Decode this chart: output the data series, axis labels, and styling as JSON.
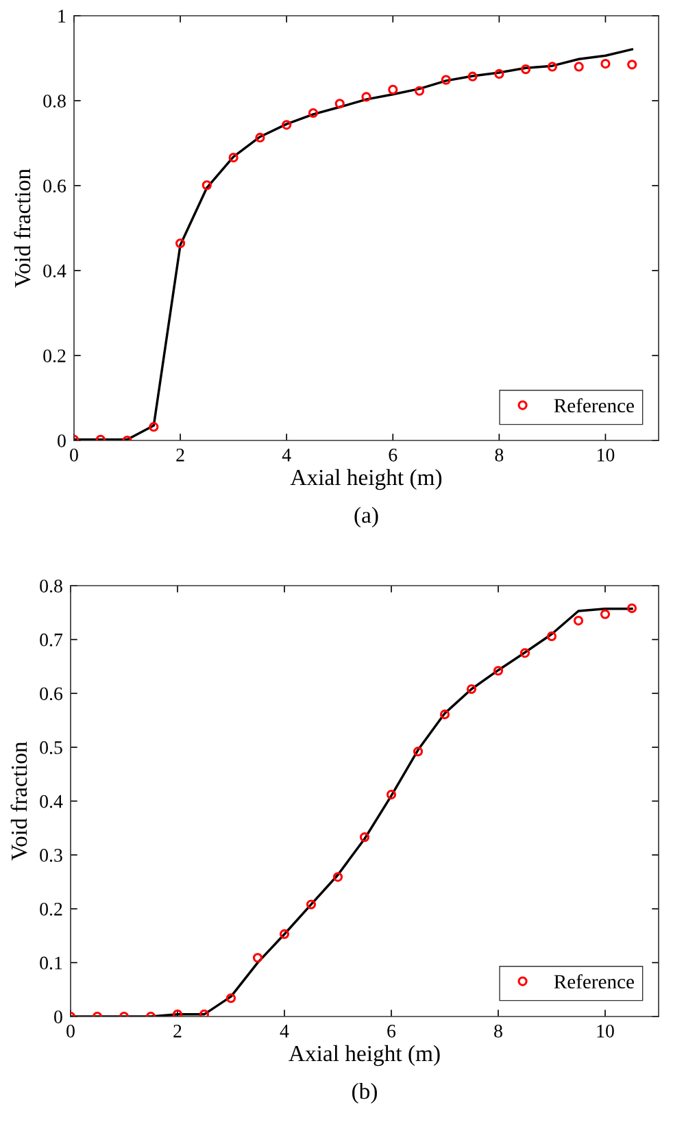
{
  "chart_data": [
    {
      "type": "line",
      "xlabel": "Axial height (m)",
      "ylabel": "Void fraction",
      "annotations": [
        "(a)"
      ],
      "xlim": [
        0,
        11
      ],
      "xticks": [
        0,
        2,
        4,
        6,
        8,
        10
      ],
      "ylim": [
        0,
        1
      ],
      "yticks": [
        0,
        0.2,
        0.4,
        0.6,
        0.8,
        1
      ],
      "grid": false,
      "legend": "bottom right",
      "series": [
        {
          "name": "Reference",
          "type": "scatter",
          "marker": "circle",
          "color": "#ff0000",
          "x": [
            0,
            0.5,
            1,
            1.5,
            2,
            2.5,
            3,
            3.5,
            4,
            4.5,
            5,
            5.5,
            6,
            6.5,
            7,
            7.5,
            8,
            8.5,
            9,
            9.5,
            10,
            10.5
          ],
          "values": [
            0.002,
            0.002,
            0,
            0.032,
            0.464,
            0.601,
            0.666,
            0.713,
            0.743,
            0.771,
            0.793,
            0.809,
            0.826,
            0.823,
            0.849,
            0.857,
            0.863,
            0.874,
            0.88,
            0.88,
            0.887,
            0.885
          ]
        },
        {
          "color": "#000000",
          "line_style": "solid",
          "x": [
            0,
            0.5,
            1,
            1.5,
            2,
            2.5,
            3,
            3.5,
            4,
            4.5,
            5,
            5.5,
            6,
            6.5,
            7,
            7.5,
            8,
            8.5,
            9,
            9.5,
            10,
            10.5
          ],
          "values": [
            0.002,
            0.002,
            0.002,
            0.035,
            0.46,
            0.595,
            0.668,
            0.715,
            0.745,
            0.768,
            0.785,
            0.803,
            0.815,
            0.828,
            0.847,
            0.858,
            0.866,
            0.877,
            0.882,
            0.898,
            0.906,
            0.921
          ]
        }
      ]
    },
    {
      "type": "line",
      "xlabel": "Axial height (m)",
      "ylabel": "Void fraction",
      "annotations": [
        "(b)"
      ],
      "xlim": [
        0,
        11
      ],
      "xticks": [
        0,
        2,
        4,
        6,
        8,
        10
      ],
      "ylim": [
        0,
        0.8
      ],
      "yticks": [
        0,
        0.1,
        0.2,
        0.3,
        0.4,
        0.5,
        0.6,
        0.7,
        0.8
      ],
      "grid": false,
      "legend": "bottom right",
      "series": [
        {
          "name": "Reference",
          "type": "scatter",
          "marker": "circle",
          "color": "#ff0000",
          "x": [
            0,
            0.5,
            1,
            1.5,
            2,
            2.5,
            3,
            3.5,
            4,
            4.5,
            5,
            5.5,
            6,
            6.5,
            7,
            7.5,
            8,
            8.5,
            9,
            9.5,
            10,
            10.5
          ],
          "values": [
            0,
            0,
            0,
            0,
            0.004,
            0.004,
            0.034,
            0.109,
            0.153,
            0.208,
            0.259,
            0.333,
            0.412,
            0.492,
            0.561,
            0.608,
            0.642,
            0.675,
            0.706,
            0.735,
            0.747,
            0.758
          ]
        },
        {
          "color": "#000000",
          "line_style": "solid",
          "x": [
            0,
            0.5,
            1,
            1.5,
            2,
            2.5,
            3,
            3.5,
            4,
            4.5,
            5,
            5.5,
            6,
            6.5,
            7,
            7.5,
            8,
            8.5,
            9,
            9.5,
            10,
            10.5
          ],
          "values": [
            0,
            0,
            0,
            0,
            0.004,
            0.004,
            0.037,
            0.1,
            0.153,
            0.208,
            0.263,
            0.33,
            0.41,
            0.495,
            0.563,
            0.608,
            0.643,
            0.676,
            0.71,
            0.753,
            0.757,
            0.757
          ]
        }
      ]
    }
  ]
}
